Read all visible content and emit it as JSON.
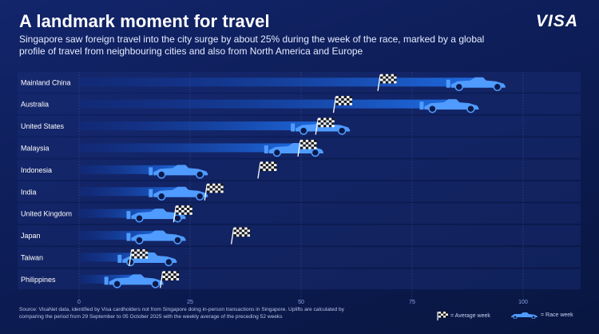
{
  "header": {
    "title": "A landmark moment for travel",
    "subtitle": "Singapore saw foreign travel into the city surge by about 25% during the week of the race, marked by a global profile of travel from neighbouring cities and also from North America and Europe",
    "brand": "VISA"
  },
  "footnote": "Source: VisaNet data, identified by Visa cardholders not from Singapore doing in-person transactions in Singapore. Uplifts are calculated by comparing the period from 29 September to 05 October 2025 with the weekly average of the preceding 52 weeks",
  "legend": {
    "average_label": "= Average week",
    "race_label": "= Race week",
    "average_icon": "checkered-flag-icon",
    "race_icon": "race-car-icon"
  },
  "colors": {
    "background": "#0d1d57",
    "bar": "#1e6be0",
    "car": "#4f9bff",
    "flag_light": "#ffffff",
    "flag_dark": "#1a1a1a"
  },
  "chart_data": {
    "type": "bar",
    "orientation": "horizontal",
    "categories": [
      "Mainland China",
      "Australia",
      "United States",
      "Malaysia",
      "Indonesia",
      "India",
      "United Kingdom",
      "Japan",
      "Taiwan",
      "Philippines"
    ],
    "series": [
      {
        "name": "Average week",
        "values": [
          68,
          58,
          54,
          50,
          41,
          29,
          22,
          35,
          12,
          19
        ]
      },
      {
        "name": "Race week",
        "values": [
          96,
          90,
          61,
          55,
          29,
          29,
          24,
          24,
          22,
          19
        ]
      }
    ],
    "xticks": [
      "0",
      "25",
      "50",
      "75",
      "100"
    ],
    "xlim": [
      0,
      100
    ],
    "grid": true
  }
}
